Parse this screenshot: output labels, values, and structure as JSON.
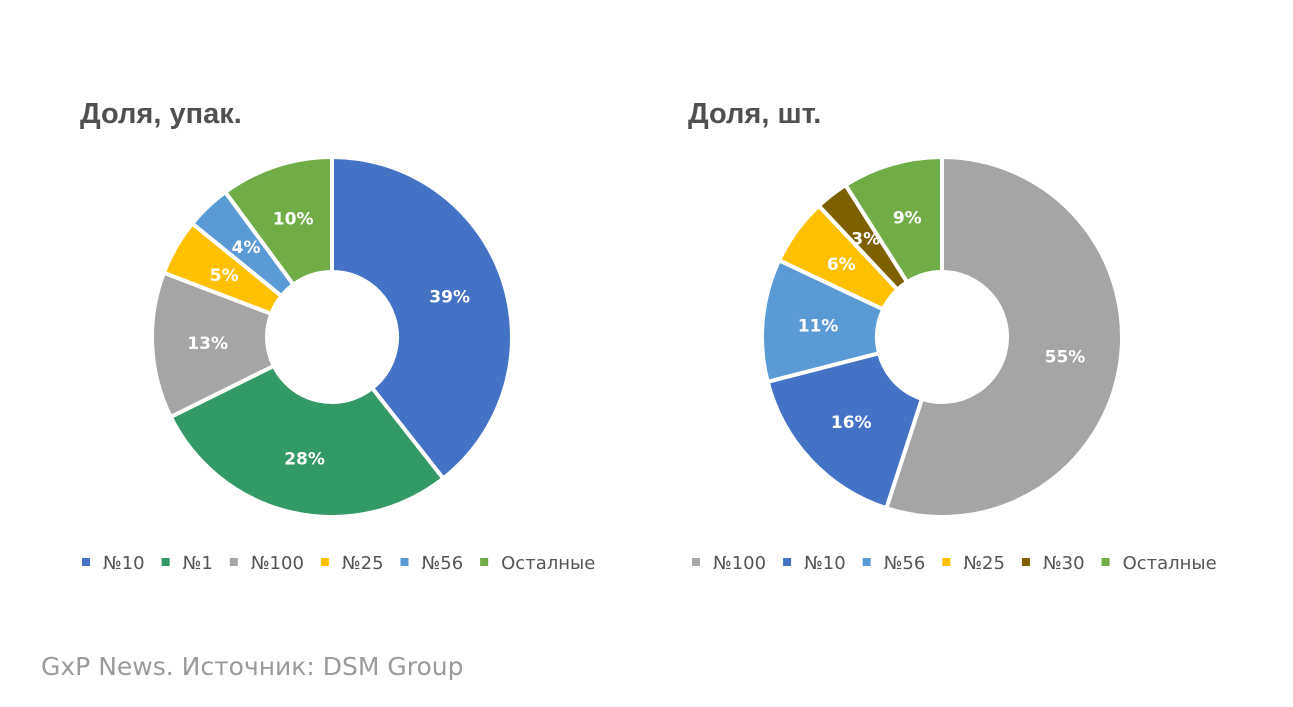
{
  "source_note": "GxP News. Источник: DSM Group",
  "chart_data": [
    {
      "type": "pie",
      "donut": true,
      "title": "Доля, упак.",
      "legend_position": "bottom",
      "categories": [
        "№10",
        "№1",
        "№100",
        "№25",
        "№56",
        "Осталные"
      ],
      "values": [
        39,
        28,
        13,
        5,
        4,
        10
      ],
      "labels": [
        "39%",
        "28%",
        "13%",
        "5%",
        "4%",
        "10%"
      ],
      "colors": [
        "#4472C4",
        "#339966",
        "#A5A5A5",
        "#FFC000",
        "#5B9BD5",
        "#70AD47"
      ]
    },
    {
      "type": "pie",
      "donut": true,
      "title": "Доля, шт.",
      "legend_position": "bottom",
      "categories": [
        "№100",
        "№10",
        "№56",
        "№25",
        "№30",
        "Осталные"
      ],
      "values": [
        55,
        16,
        11,
        6,
        3,
        9
      ],
      "labels": [
        "55%",
        "16%",
        "11%",
        "6%",
        "3%",
        "9%"
      ],
      "colors": [
        "#A5A5A5",
        "#4472C4",
        "#5B9BD5",
        "#FFC000",
        "#7F6000",
        "#70AD47"
      ]
    }
  ]
}
